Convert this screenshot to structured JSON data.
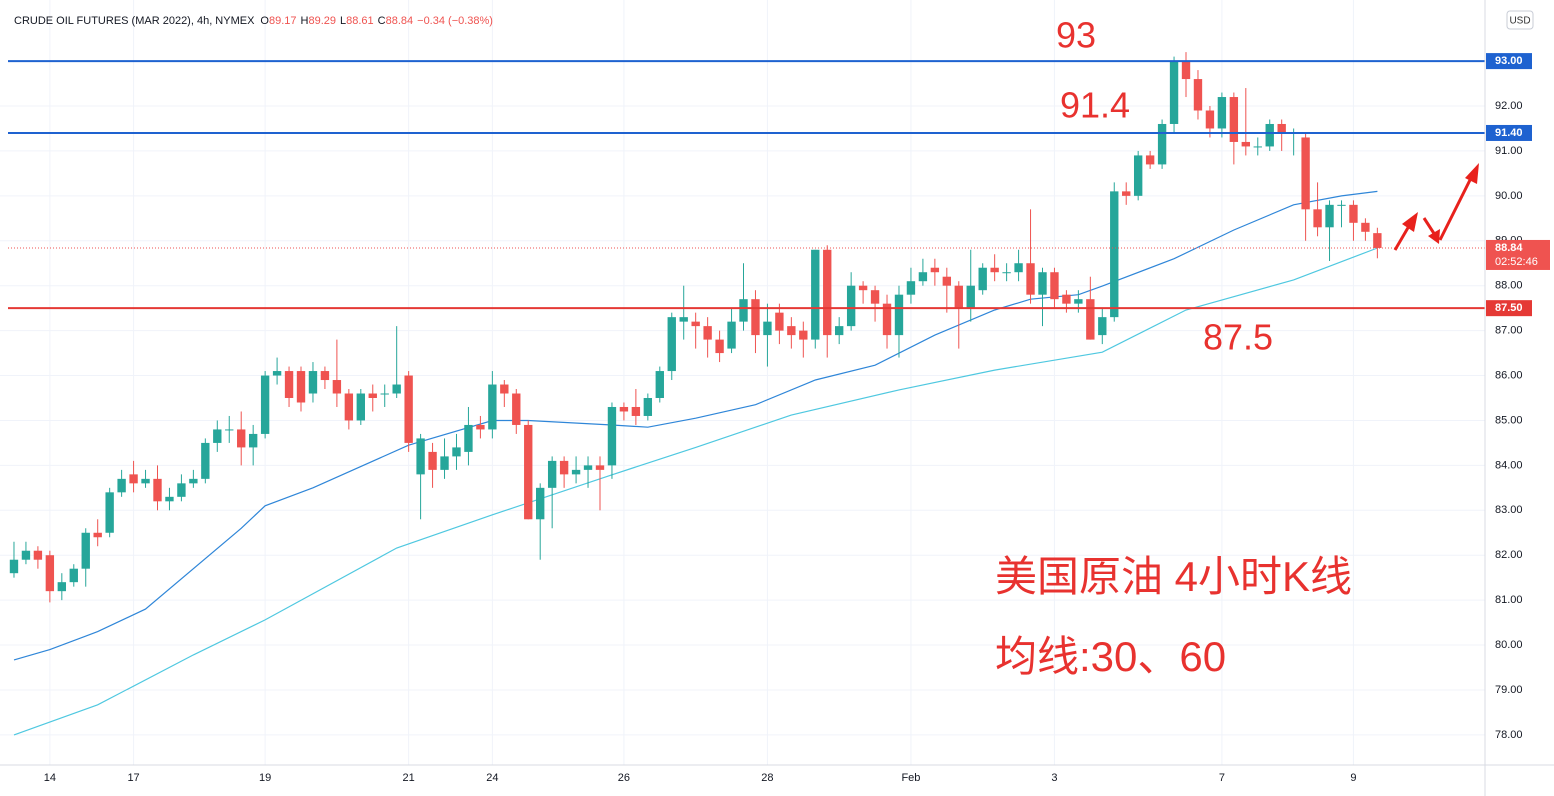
{
  "chart_data": {
    "type": "candlestick",
    "title": "CRUDE OIL FUTURES (MAR 2022), 4h, NYMEX",
    "ohlc_legend": [
      {
        "key": "O",
        "value": "89.17"
      },
      {
        "key": "H",
        "value": "89.29"
      },
      {
        "key": "L",
        "value": "88.61"
      },
      {
        "key": "C",
        "value": "88.84"
      }
    ],
    "change": "−0.34 (−0.38%)",
    "currency": "USD",
    "up_color": "#26a69a",
    "down_color": "#ef5350",
    "categories": [
      null,
      null,
      null,
      "14",
      null,
      null,
      null,
      null,
      null,
      null,
      "17",
      null,
      null,
      null,
      null,
      null,
      null,
      null,
      null,
      null,
      null,
      "19",
      null,
      null,
      null,
      null,
      null,
      null,
      null,
      null,
      null,
      null,
      null,
      "21",
      null,
      null,
      null,
      null,
      null,
      null,
      "24",
      null,
      null,
      null,
      null,
      null,
      null,
      null,
      null,
      null,
      null,
      "26",
      null,
      null,
      null,
      null,
      null,
      null,
      null,
      null,
      null,
      null,
      null,
      "28",
      null,
      null,
      null,
      null,
      null,
      null,
      null,
      null,
      null,
      null,
      null,
      "Feb",
      null,
      null,
      null,
      null,
      null,
      null,
      null,
      null,
      null,
      null,
      null,
      "3",
      null,
      null,
      null,
      null,
      null,
      null,
      null,
      null,
      null,
      null,
      null,
      null,
      null,
      "7",
      null,
      null,
      null,
      null,
      null,
      null,
      null,
      null,
      null,
      null,
      "9",
      null,
      null
    ],
    "open": [
      81.6,
      81.9,
      82.1,
      82.0,
      81.2,
      81.4,
      81.7,
      82.5,
      82.5,
      83.4,
      83.8,
      83.6,
      83.7,
      83.2,
      83.3,
      83.6,
      83.7,
      84.5,
      84.8,
      84.8,
      84.4,
      84.7,
      86.0,
      86.1,
      86.1,
      85.6,
      86.1,
      85.9,
      85.6,
      85.0,
      85.6,
      85.6,
      85.6,
      86.0,
      83.8,
      84.3,
      83.9,
      84.2,
      84.3,
      84.9,
      84.8,
      85.8,
      85.6,
      84.9,
      82.8,
      83.5,
      84.1,
      83.8,
      83.9,
      84.0,
      84.0,
      85.3,
      85.3,
      85.1,
      85.5,
      86.1,
      87.2,
      87.2,
      87.1,
      86.8,
      86.6,
      87.2,
      87.7,
      86.9,
      87.4,
      87.1,
      87.0,
      86.8,
      88.8,
      86.9,
      87.1,
      88.0,
      87.9,
      87.6,
      86.9,
      87.8,
      88.1,
      88.4,
      88.2,
      88.0,
      87.5,
      87.9,
      88.4,
      88.3,
      88.3,
      88.5,
      87.8,
      88.3,
      87.8,
      87.6,
      87.7,
      86.9,
      87.3,
      90.1,
      90.0,
      90.9,
      90.7,
      91.6,
      93.0,
      92.6,
      91.9,
      91.5,
      92.2,
      91.2,
      91.1,
      91.1,
      91.6,
      91.4,
      91.3,
      89.7,
      89.3,
      89.8,
      89.8,
      89.4,
      89.17
    ],
    "high": [
      82.3,
      82.3,
      82.2,
      82.1,
      81.6,
      81.8,
      82.6,
      82.8,
      83.5,
      83.9,
      84.1,
      83.9,
      84.0,
      83.5,
      83.8,
      83.9,
      84.6,
      85.0,
      85.1,
      85.2,
      84.9,
      86.1,
      86.4,
      86.2,
      86.2,
      86.3,
      86.2,
      86.8,
      85.7,
      85.7,
      85.8,
      85.8,
      87.1,
      86.1,
      84.7,
      84.5,
      84.6,
      84.7,
      85.3,
      85.1,
      86.1,
      85.9,
      85.7,
      85.0,
      83.6,
      84.2,
      84.2,
      84.2,
      84.2,
      84.2,
      85.4,
      85.4,
      85.7,
      85.6,
      86.2,
      87.4,
      88.0,
      87.4,
      87.3,
      87.0,
      87.5,
      88.5,
      87.9,
      87.6,
      87.6,
      87.3,
      87.2,
      88.8,
      88.9,
      87.3,
      88.3,
      88.1,
      88.0,
      87.8,
      88.0,
      88.4,
      88.6,
      88.6,
      88.4,
      88.1,
      88.8,
      88.5,
      88.7,
      88.5,
      88.8,
      89.7,
      88.4,
      88.4,
      87.9,
      87.9,
      88.2,
      87.5,
      90.3,
      90.3,
      91.0,
      91.0,
      91.7,
      93.1,
      93.2,
      92.8,
      92.0,
      92.3,
      92.3,
      92.4,
      91.3,
      91.7,
      91.7,
      91.5,
      91.4,
      90.3,
      89.9,
      89.9,
      89.9,
      89.5,
      89.29
    ],
    "low": [
      81.5,
      81.8,
      81.7,
      80.95,
      81.0,
      81.3,
      81.3,
      82.2,
      82.4,
      83.3,
      83.4,
      83.5,
      83.0,
      83.0,
      83.2,
      83.5,
      83.6,
      84.3,
      84.5,
      84.0,
      84.0,
      84.6,
      85.8,
      85.3,
      85.2,
      85.4,
      85.7,
      85.3,
      84.8,
      84.9,
      85.2,
      85.3,
      85.5,
      84.3,
      82.8,
      83.5,
      83.7,
      83.9,
      84.0,
      84.6,
      84.6,
      85.3,
      84.7,
      82.8,
      81.9,
      82.6,
      83.5,
      83.6,
      83.5,
      83.0,
      83.7,
      85.0,
      84.9,
      85.0,
      85.4,
      85.9,
      86.8,
      86.6,
      86.4,
      86.3,
      86.5,
      87.0,
      86.5,
      86.2,
      86.7,
      86.6,
      86.4,
      86.6,
      86.4,
      86.7,
      87.0,
      87.6,
      87.2,
      86.6,
      86.4,
      87.6,
      88.0,
      88.0,
      87.4,
      86.6,
      87.2,
      87.8,
      88.1,
      88.1,
      88.1,
      87.6,
      87.1,
      87.5,
      87.4,
      87.4,
      86.8,
      86.7,
      87.2,
      89.8,
      89.9,
      90.6,
      90.6,
      91.4,
      92.2,
      91.7,
      91.3,
      91.3,
      90.7,
      90.9,
      90.9,
      91.0,
      91.0,
      90.9,
      89.0,
      89.1,
      88.55,
      89.3,
      89.0,
      89.0,
      88.61
    ],
    "close": [
      81.9,
      82.1,
      81.9,
      81.2,
      81.4,
      81.7,
      82.5,
      82.4,
      83.4,
      83.7,
      83.6,
      83.7,
      83.2,
      83.3,
      83.6,
      83.7,
      84.5,
      84.8,
      84.8,
      84.4,
      84.7,
      86.0,
      86.1,
      85.5,
      85.4,
      86.1,
      85.9,
      85.6,
      85.0,
      85.6,
      85.5,
      85.6,
      85.8,
      84.5,
      84.6,
      83.9,
      84.2,
      84.4,
      84.9,
      84.8,
      85.8,
      85.6,
      84.9,
      82.8,
      83.5,
      84.1,
      83.8,
      83.9,
      84.0,
      83.9,
      85.3,
      85.2,
      85.1,
      85.5,
      86.1,
      87.3,
      87.3,
      87.1,
      86.8,
      86.5,
      87.2,
      87.7,
      86.9,
      87.2,
      87.0,
      86.9,
      86.8,
      88.8,
      86.9,
      87.1,
      88.0,
      87.9,
      87.6,
      86.9,
      87.8,
      88.1,
      88.3,
      88.3,
      88.0,
      87.5,
      88.0,
      88.4,
      88.3,
      88.3,
      88.5,
      87.8,
      88.3,
      87.7,
      87.6,
      87.7,
      86.8,
      87.3,
      90.1,
      90.0,
      90.9,
      90.7,
      91.6,
      93.0,
      92.6,
      91.9,
      91.5,
      92.2,
      91.2,
      91.1,
      91.1,
      91.6,
      91.4,
      91.4,
      89.7,
      89.3,
      89.8,
      89.8,
      89.4,
      89.2,
      88.84
    ],
    "series": [
      {
        "color": "#2f86d8",
        "x": [
          0,
          3,
          7,
          11,
          19,
          21,
          25,
          33,
          40,
          43,
          50,
          53,
          57,
          62,
          67,
          72,
          77,
          82,
          85,
          89,
          91,
          97,
          102,
          107,
          111,
          114
        ],
        "values": [
          79.67,
          79.9,
          80.3,
          80.8,
          82.6,
          83.1,
          83.5,
          84.45,
          85.0,
          85.0,
          84.9,
          84.85,
          85.05,
          85.35,
          85.9,
          86.23,
          86.9,
          87.46,
          87.7,
          87.8,
          87.99,
          88.6,
          89.24,
          89.8,
          90.0,
          90.1
        ]
      },
      {
        "color": "#4fc8e0",
        "x": [
          0,
          7,
          15,
          21,
          32,
          40,
          50,
          57,
          65,
          74,
          82,
          91,
          98,
          107,
          114
        ],
        "values": [
          78.0,
          78.67,
          79.78,
          80.56,
          82.16,
          82.9,
          83.79,
          84.4,
          85.12,
          85.68,
          86.12,
          86.52,
          87.46,
          88.13,
          88.84
        ]
      }
    ],
    "levels": [
      {
        "value": 93.0,
        "label": "93.00",
        "color": "#1e62d0"
      },
      {
        "value": 91.4,
        "label": "91.40",
        "color": "#1e62d0"
      },
      {
        "value": 87.5,
        "label": "87.50",
        "color": "#e53935"
      }
    ],
    "last_price": 88.84,
    "countdown": "02:52:46",
    "annotations": [
      "93",
      "91.4",
      "87.5"
    ],
    "note_lines": [
      "美国原油 4小时K线",
      "均线:30、60"
    ],
    "xlim": [
      -0.5,
      123
    ],
    "ylim": [
      77.33,
      94.36
    ],
    "yticks": [
      {
        "value": 78,
        "label": "78.00"
      },
      {
        "value": 79,
        "label": "79.00"
      },
      {
        "value": 80,
        "label": "80.00"
      },
      {
        "value": 81,
        "label": "81.00"
      },
      {
        "value": 82,
        "label": "82.00"
      },
      {
        "value": 83,
        "label": "83.00"
      },
      {
        "value": 84,
        "label": "84.00"
      },
      {
        "value": 85,
        "label": "85.00"
      },
      {
        "value": 86,
        "label": "86.00"
      },
      {
        "value": 87,
        "label": "87.00"
      },
      {
        "value": 88,
        "label": "88.00"
      },
      {
        "value": 89,
        "label": "89.00"
      },
      {
        "value": 90,
        "label": "90.00"
      },
      {
        "value": 91,
        "label": "91.00"
      },
      {
        "value": 92,
        "label": "92.00"
      }
    ],
    "grid": true
  }
}
